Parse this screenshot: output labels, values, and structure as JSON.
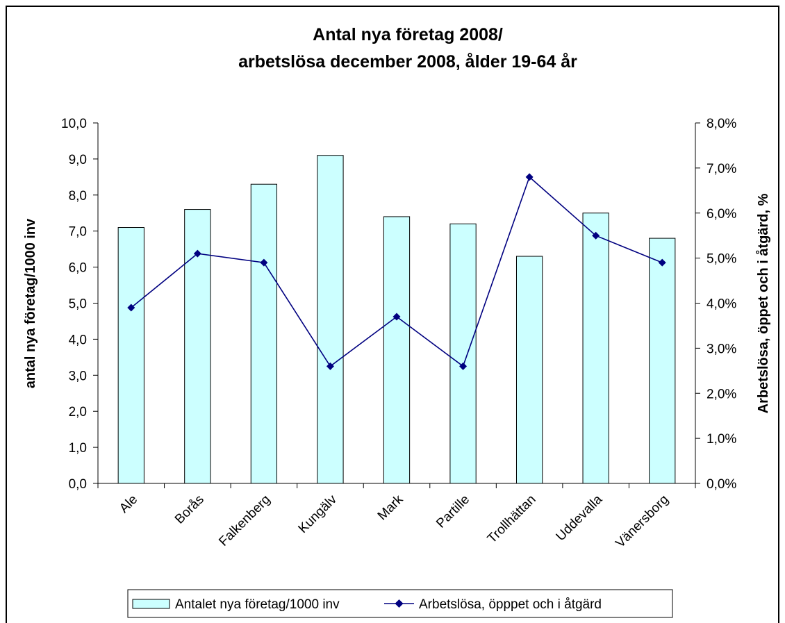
{
  "chart_data": {
    "type": "bar",
    "title": [
      "Antal nya företag 2008/",
      "arbetslösa december 2008, ålder 19-64 år"
    ],
    "categories": [
      "Ale",
      "Borås",
      "Falkenberg",
      "Kungälv",
      "Mark",
      "Partille",
      "Trollhättan",
      "Uddevalla",
      "Vänersborg"
    ],
    "series": [
      {
        "name": "Antalet nya företag/1000 inv",
        "type": "bar",
        "axis": "left",
        "values": [
          7.1,
          7.6,
          8.3,
          9.1,
          7.4,
          7.2,
          6.3,
          7.5,
          6.8
        ],
        "color": "#ccffff"
      },
      {
        "name": "Arbetslösa, öpppet och i åtgärd",
        "type": "line",
        "axis": "right",
        "values": [
          0.039,
          0.051,
          0.049,
          0.026,
          0.037,
          0.026,
          0.068,
          0.055,
          0.049
        ],
        "color": "#000080"
      }
    ],
    "ylabel": "antal nya företag/1000 inv",
    "ylabel_right": "Arbetslösa, öppet och i åtgärd, %",
    "ylim": [
      0,
      10
    ],
    "ylim_right": [
      0,
      0.08
    ],
    "yticks": [
      "0,0",
      "1,0",
      "2,0",
      "3,0",
      "4,0",
      "5,0",
      "6,0",
      "7,0",
      "8,0",
      "9,0",
      "10,0"
    ],
    "yticks_right": [
      "0,0%",
      "1,0%",
      "2,0%",
      "3,0%",
      "4,0%",
      "5,0%",
      "6,0%",
      "7,0%",
      "8,0%"
    ],
    "legend_position": "bottom",
    "grid": false
  }
}
